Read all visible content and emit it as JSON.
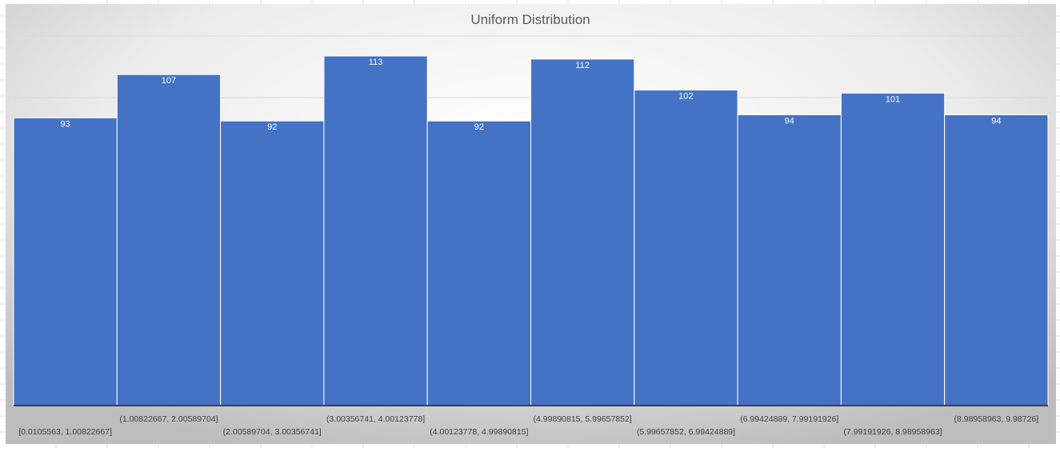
{
  "chart_data": {
    "type": "bar",
    "title": "Uniform Distribution",
    "xlabel": "",
    "ylabel": "",
    "ylim": [
      0,
      113
    ],
    "grid": true,
    "legend": "none",
    "categories": [
      "[0.0105563, 1.00822667]",
      "(1.00822667, 2.00589704]",
      "(2.00589704, 3.00356741]",
      "(3.00356741, 4.00123778]",
      "(4.00123778, 4.99890815]",
      "(4.99890815, 5.99657852]",
      "(5.99657852, 6.99424889]",
      "(6.99424889, 7.99191926]",
      "(7.99191926, 8.98958963]",
      "(8.98958963, 9.98726]"
    ],
    "values": [
      93,
      107,
      92,
      113,
      92,
      112,
      102,
      94,
      101,
      94
    ],
    "colors": {
      "bar": "#4472C4",
      "label": "#ffffff",
      "axis": "#404040",
      "gridline": "#d9d9d9",
      "title": "#595959",
      "tick": "#404040"
    }
  }
}
